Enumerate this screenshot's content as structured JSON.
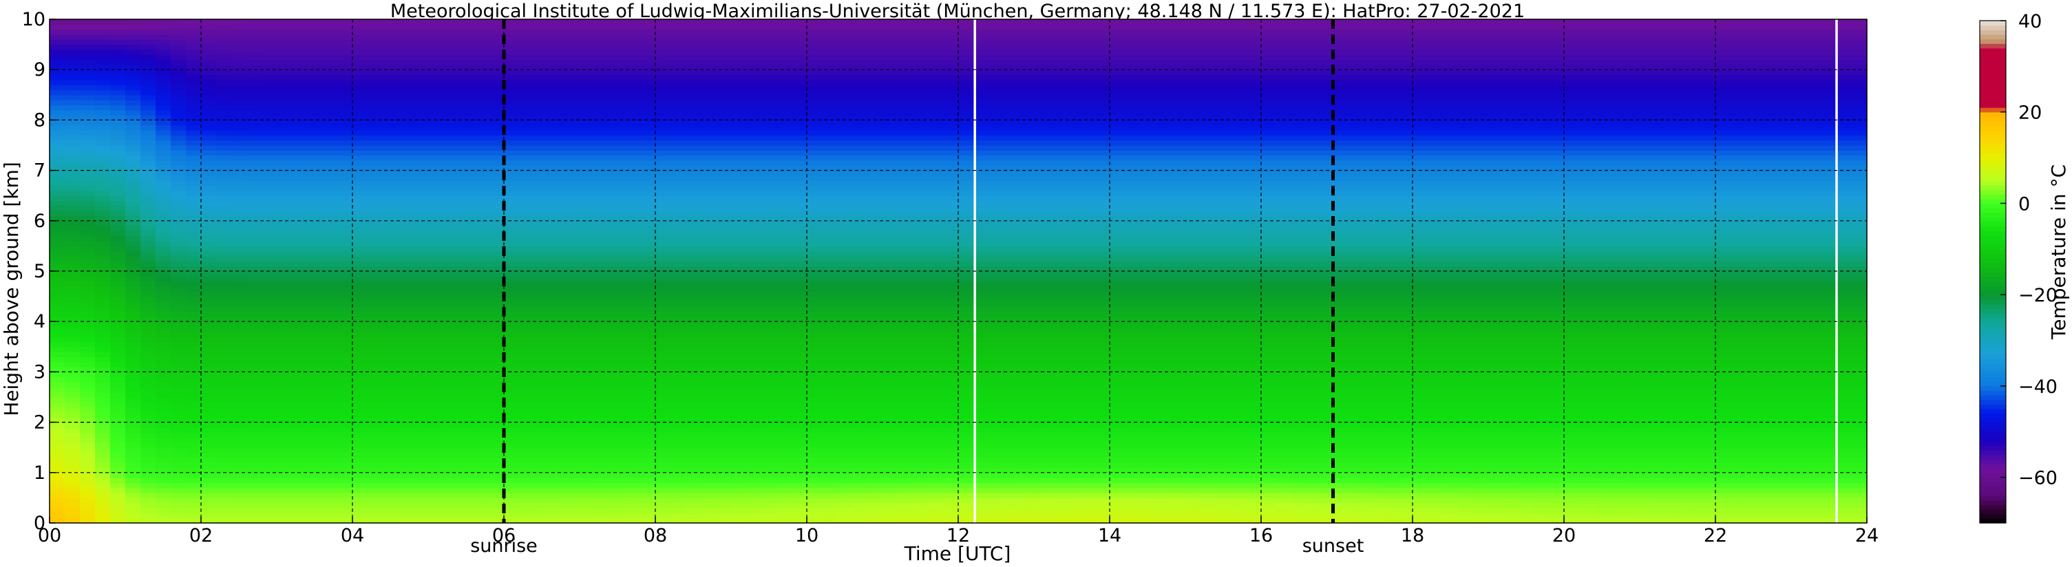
{
  "chart_data": {
    "type": "heatmap",
    "title": "Meteorological Institute of Ludwig-Maximilians-Universität (München, Germany; 48.148 N / 11.573 E):    HatPro: 27-02-2021",
    "xlabel": "Time [UTC]",
    "ylabel": "Height above ground [km]",
    "x_range": [
      0,
      24
    ],
    "y_range": [
      0,
      10
    ],
    "x_ticks": [
      "00",
      "02",
      "04",
      "06",
      "08",
      "10",
      "12",
      "14",
      "16",
      "18",
      "20",
      "22",
      "24"
    ],
    "y_ticks": [
      "0",
      "1",
      "2",
      "3",
      "4",
      "5",
      "6",
      "7",
      "8",
      "9",
      "10"
    ],
    "grid": true,
    "annotations": [
      {
        "label": "sunrise",
        "x": 6.0
      },
      {
        "label": "sunset",
        "x": 16.95
      }
    ],
    "data_gaps_x": [
      12.22,
      23.6
    ],
    "temperature_profile": {
      "description_heights_km": [
        0,
        0.5,
        1,
        2,
        3,
        4,
        5,
        6,
        7,
        8,
        9,
        10
      ],
      "early_00_01_utc_celsius": [
        18,
        15,
        10,
        5,
        0,
        -8,
        -14,
        -20,
        -28,
        -38,
        -48,
        -60
      ],
      "rest_of_day_celsius": [
        5,
        3,
        -2,
        -6,
        -10,
        -15,
        -22,
        -30,
        -38,
        -48,
        -54,
        -58
      ]
    },
    "colorbar": {
      "label": "Temperature in °C",
      "range": [
        -70,
        40
      ],
      "ticks": [
        "40",
        "20",
        "0",
        "−20",
        "−40",
        "−60"
      ],
      "tick_values": [
        40,
        20,
        0,
        -20,
        -40,
        -60
      ],
      "colors": [
        {
          "t": -70,
          "c": "#000000"
        },
        {
          "t": -67,
          "c": "#330033"
        },
        {
          "t": -64,
          "c": "#5a0a7a"
        },
        {
          "t": -58,
          "c": "#6e119c"
        },
        {
          "t": -52,
          "c": "#1a00c0"
        },
        {
          "t": -46,
          "c": "#0018e8"
        },
        {
          "t": -40,
          "c": "#0c78e0"
        },
        {
          "t": -33,
          "c": "#1aa0d8"
        },
        {
          "t": -26,
          "c": "#10a89a"
        },
        {
          "t": -20,
          "c": "#089830"
        },
        {
          "t": -13,
          "c": "#10c010"
        },
        {
          "t": -6,
          "c": "#10e010"
        },
        {
          "t": 0,
          "c": "#40ff20"
        },
        {
          "t": 5,
          "c": "#b8ff20"
        },
        {
          "t": 10,
          "c": "#e6f000"
        },
        {
          "t": 15,
          "c": "#ffd000"
        },
        {
          "t": 20,
          "c": "#ffb800"
        },
        {
          "t": 21,
          "c": "#c0003a"
        },
        {
          "t": 34,
          "c": "#c0003a"
        },
        {
          "t": 35,
          "c": "#c08860"
        },
        {
          "t": 38,
          "c": "#d8c0a8"
        },
        {
          "t": 40,
          "c": "#e8e0d8"
        }
      ]
    }
  }
}
